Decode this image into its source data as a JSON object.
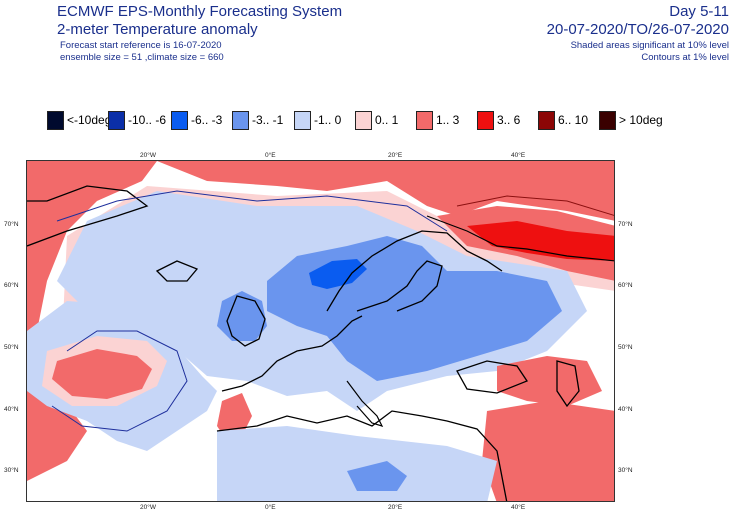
{
  "header": {
    "title": "ECMWF EPS-Monthly Forecasting System",
    "subtitle": "2-meter Temperature anomaly",
    "start_ref": "Forecast start reference is 16-07-2020",
    "ensemble": "ensemble size = 51  ,climate size = 660",
    "day_range": "Day 5-11",
    "date_range": "20-07-2020/TO/26-07-2020",
    "shaded_note": "Shaded areas significant at 10% level",
    "contours_note": "Contours at 1% level"
  },
  "legend": [
    {
      "label": "<-10deg",
      "color": "#000a2e"
    },
    {
      "label": "-10.. -6",
      "color": "#0b2fa8"
    },
    {
      "label": "-6.. -3",
      "color": "#0a5cf0"
    },
    {
      "label": "-3.. -1",
      "color": "#6a95ee"
    },
    {
      "label": "-1.. 0",
      "color": "#c6d6f7"
    },
    {
      "label": "0.. 1",
      "color": "#fbd3d3"
    },
    {
      "label": "1.. 3",
      "color": "#f26a6a"
    },
    {
      "label": "3.. 6",
      "color": "#ee1010"
    },
    {
      "label": "6.. 10",
      "color": "#8c0606"
    },
    {
      "label": "> 10deg",
      "color": "#3a0000"
    }
  ],
  "map": {
    "lon_ticks": [
      "20°W",
      "0°E",
      "20°E",
      "40°E"
    ],
    "lat_ticks": [
      "70°N",
      "60°N",
      "50°N",
      "40°N",
      "30°N"
    ]
  }
}
